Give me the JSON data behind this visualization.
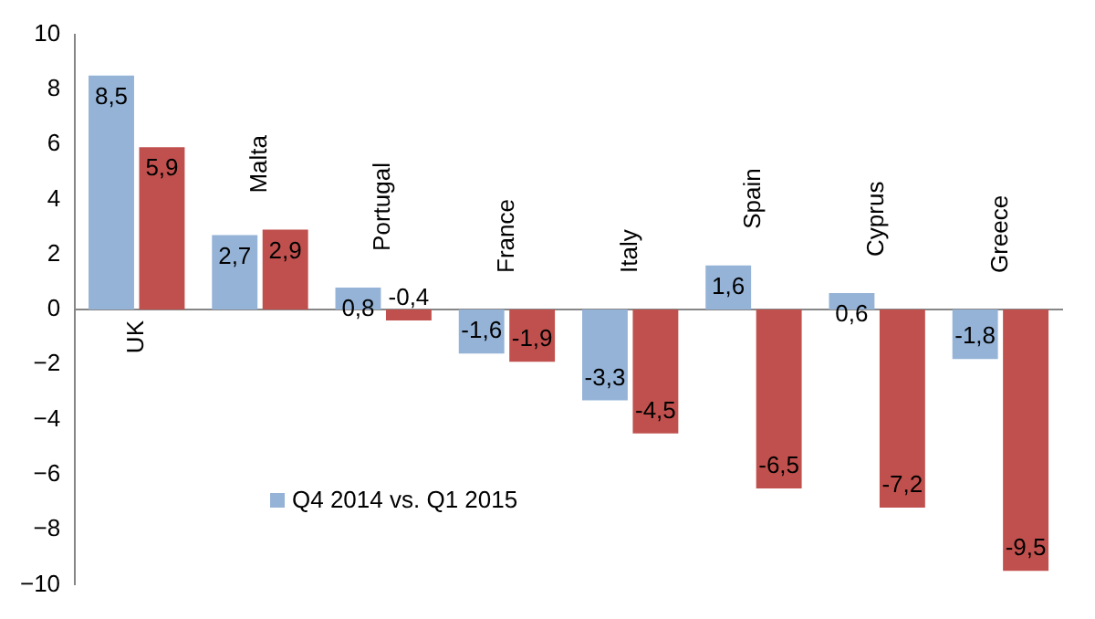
{
  "chart_data": {
    "type": "bar",
    "categories": [
      "UK",
      "Malta",
      "Portugal",
      "France",
      "Italy",
      "Spain",
      "Cyprus",
      "Greece"
    ],
    "series": [
      {
        "name": "Q4 2014 vs. Q1 2015",
        "color": "#95b3d7",
        "values": [
          8.5,
          2.7,
          0.8,
          -1.6,
          -3.3,
          1.6,
          0.6,
          -1.8
        ],
        "value_labels": [
          "8,5",
          "2,7",
          "0,8",
          "-1,6",
          "-3,3",
          "1,6",
          "0,6",
          "-1,8"
        ]
      },
      {
        "color": "#c0504d",
        "values": [
          5.9,
          2.9,
          -0.4,
          -1.9,
          -4.5,
          -6.5,
          -7.2,
          -9.5
        ],
        "value_labels": [
          "5,9",
          "2,9",
          "-0,4",
          "-1,9",
          "-4,5",
          "-6,5",
          "-7,2",
          "-9,5"
        ]
      }
    ],
    "ylim": [
      -10,
      10
    ],
    "yticks": [
      -10,
      -8,
      -6,
      -4,
      -2,
      0,
      2,
      4,
      6,
      8,
      10
    ],
    "grid": false,
    "legend": "bottom left"
  }
}
